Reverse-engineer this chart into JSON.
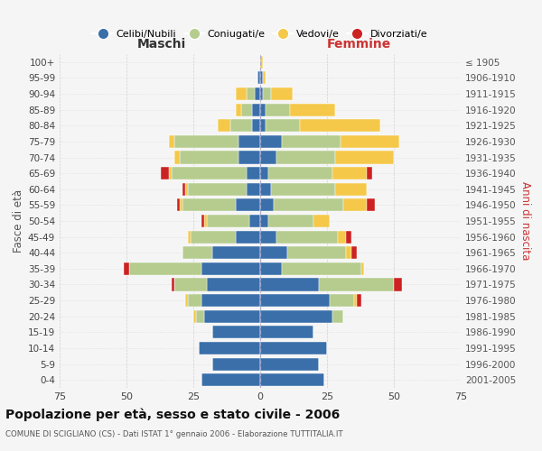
{
  "age_groups": [
    "0-4",
    "5-9",
    "10-14",
    "15-19",
    "20-24",
    "25-29",
    "30-34",
    "35-39",
    "40-44",
    "45-49",
    "50-54",
    "55-59",
    "60-64",
    "65-69",
    "70-74",
    "75-79",
    "80-84",
    "85-89",
    "90-94",
    "95-99",
    "100+"
  ],
  "birth_years": [
    "2001-2005",
    "1996-2000",
    "1991-1995",
    "1986-1990",
    "1981-1985",
    "1976-1980",
    "1971-1975",
    "1966-1970",
    "1961-1965",
    "1956-1960",
    "1951-1955",
    "1946-1950",
    "1941-1945",
    "1936-1940",
    "1931-1935",
    "1926-1930",
    "1921-1925",
    "1916-1920",
    "1911-1915",
    "1906-1910",
    "≤ 1905"
  ],
  "colors": {
    "celibe": "#3a6faa",
    "coniugato": "#b5cc8e",
    "vedovo": "#f5c84a",
    "divorziato": "#cc2222"
  },
  "maschi": {
    "celibe": [
      22,
      18,
      23,
      18,
      21,
      22,
      20,
      22,
      18,
      9,
      4,
      9,
      5,
      5,
      8,
      8,
      3,
      3,
      2,
      1,
      0
    ],
    "coniugato": [
      0,
      0,
      0,
      0,
      3,
      5,
      12,
      27,
      11,
      17,
      16,
      20,
      22,
      28,
      22,
      24,
      8,
      4,
      3,
      0,
      0
    ],
    "vedovo": [
      0,
      0,
      0,
      0,
      1,
      1,
      0,
      0,
      0,
      1,
      1,
      1,
      1,
      1,
      2,
      2,
      5,
      2,
      4,
      0,
      0
    ],
    "divorziato": [
      0,
      0,
      0,
      0,
      0,
      0,
      1,
      2,
      0,
      0,
      1,
      1,
      1,
      3,
      0,
      0,
      0,
      0,
      0,
      0,
      0
    ]
  },
  "femmine": {
    "celibe": [
      24,
      22,
      25,
      20,
      27,
      26,
      22,
      8,
      10,
      6,
      3,
      5,
      4,
      3,
      6,
      8,
      2,
      2,
      1,
      1,
      0
    ],
    "coniugato": [
      0,
      0,
      0,
      0,
      4,
      9,
      28,
      30,
      22,
      23,
      17,
      26,
      24,
      24,
      22,
      22,
      13,
      9,
      3,
      0,
      0
    ],
    "vedovo": [
      0,
      0,
      0,
      0,
      0,
      1,
      0,
      1,
      2,
      3,
      6,
      9,
      12,
      13,
      22,
      22,
      30,
      17,
      8,
      1,
      1
    ],
    "divorziato": [
      0,
      0,
      0,
      0,
      0,
      2,
      3,
      0,
      2,
      2,
      0,
      3,
      0,
      2,
      0,
      0,
      0,
      0,
      0,
      0,
      0
    ]
  },
  "xlim": 75,
  "title": "Popolazione per età, sesso e stato civile - 2006",
  "subtitle": "COMUNE DI SCIGLIANO (CS) - Dati ISTAT 1° gennaio 2006 - Elaborazione TUTTITALIA.IT",
  "xlabel_left": "Maschi",
  "xlabel_right": "Femmine",
  "ylabel_left": "Fasce di età",
  "ylabel_right": "Anni di nascita",
  "bg_color": "#f5f5f5",
  "grid_color": "#cccccc",
  "legend_labels": [
    "Celibi/Nubili",
    "Coniugati/e",
    "Vedovi/e",
    "Divorziati/e"
  ]
}
